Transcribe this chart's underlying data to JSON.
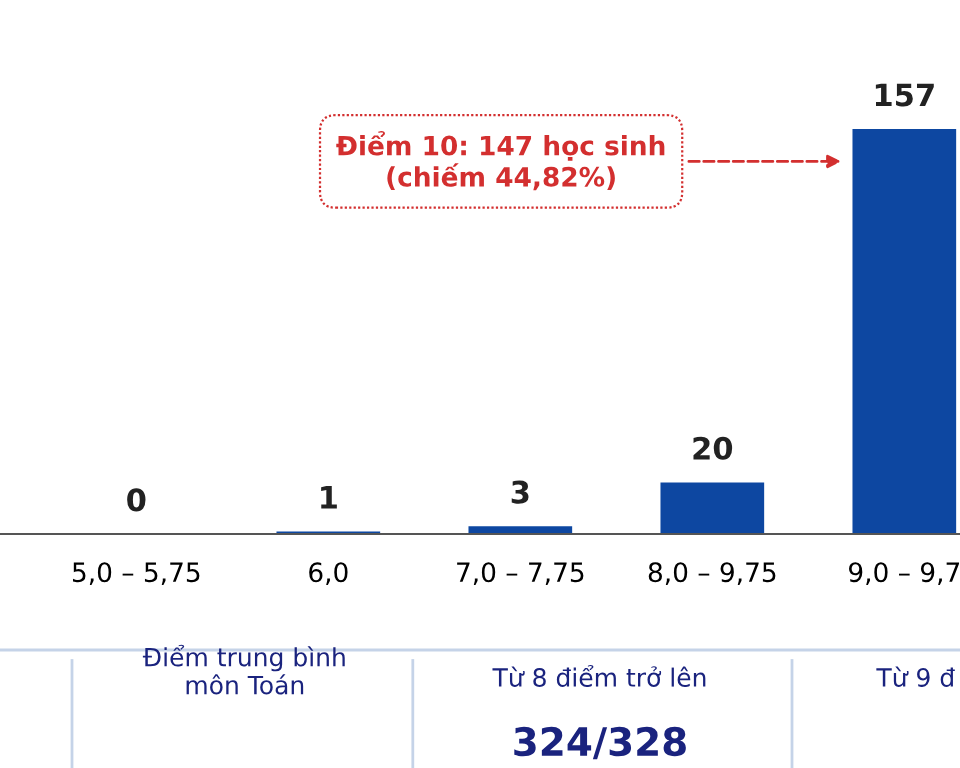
{
  "chart_data": {
    "type": "bar",
    "categories": [
      "5,0 – 5,75",
      "6,0",
      "7,0 – 7,75",
      "8,0 – 9,75",
      "9,0 – 9,7"
    ],
    "values": [
      0,
      1,
      3,
      20,
      157
    ],
    "color": "#0d47a1",
    "data_labels": true,
    "tick_labels": "x",
    "grid": false,
    "legend": false,
    "annotations": [
      "Điểm 10: 147 học sinh\n(chiếm 44,82%)",
      "Điểm trung bình\nmôn Toán",
      "Từ 8 điểm trở lên",
      "324/328",
      "Từ 9 đ"
    ]
  }
}
